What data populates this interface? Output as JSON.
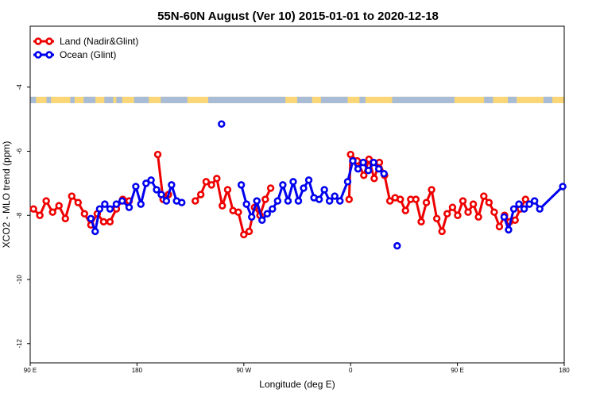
{
  "chart_data": {
    "type": "line",
    "title": "55N-60N August (Ver 10)   2015-01-01 to 2020-12-18",
    "xlabel": "Longitude (deg E)",
    "ylabel": "XCO2 - MLO trend (ppm)",
    "xlim": [
      90,
      450
    ],
    "ylim": [
      -12.6,
      -2.1
    ],
    "x_ticks": [
      {
        "value": 90,
        "label": "90 E"
      },
      {
        "value": 162,
        "label": "180"
      },
      {
        "value": 234,
        "label": "90 W"
      },
      {
        "value": 306,
        "label": "0"
      },
      {
        "value": 378,
        "label": "90 E"
      },
      {
        "value": 450,
        "label": "180"
      }
    ],
    "y_ticks": [
      {
        "value": -4,
        "label": "-4"
      },
      {
        "value": -6,
        "label": "-6"
      },
      {
        "value": -8,
        "label": "-8"
      },
      {
        "value": -10,
        "label": "-10"
      },
      {
        "value": -12,
        "label": "-12"
      }
    ],
    "legend_position": "top-left",
    "land_band": {
      "y_range": [
        -4.5,
        -4.3
      ],
      "land_color": "#fad677",
      "ocean_color": "#a8bcd6"
    },
    "series": [
      {
        "name": "Land (Nadir&Glint)",
        "color": "#ee0000",
        "segments": [
          [
            [
              92.2,
              -7.8
            ],
            [
              96.5,
              -8
            ],
            [
              100.8,
              -7.55
            ],
            [
              105.1,
              -7.9
            ],
            [
              109.4,
              -7.7
            ],
            [
              113.7,
              -8.1
            ],
            [
              118,
              -7.4
            ],
            [
              122.3,
              -7.6
            ],
            [
              126.6,
              -7.95
            ],
            [
              130.9,
              -8.3
            ],
            [
              135.2,
              -7.95
            ],
            [
              139.5,
              -8.2
            ],
            [
              143.8,
              -8.2
            ],
            [
              148.1,
              -7.8
            ],
            [
              152.4,
              -7.5
            ],
            [
              156.7,
              -7.55
            ]
          ],
          [
            [
              176,
              -6.1
            ],
            [
              179.6,
              -7.5
            ],
            [
              183.2,
              -7.35
            ]
          ],
          [
            [
              201.3,
              -7.55
            ],
            [
              205,
              -7.35
            ],
            [
              208.6,
              -6.95
            ],
            [
              212.2,
              -7.05
            ],
            [
              215.8,
              -6.85
            ],
            [
              219.5,
              -7.7
            ],
            [
              223.1,
              -7.2
            ],
            [
              226.7,
              -7.85
            ],
            [
              230.3,
              -7.9
            ],
            [
              234,
              -8.6
            ],
            [
              237.6,
              -8.5
            ],
            [
              241.2,
              -7.75
            ],
            [
              244.9,
              -8
            ],
            [
              248.5,
              -7.5
            ],
            [
              252.1,
              -7.15
            ]
          ],
          [
            [
              305,
              -7.5
            ],
            [
              306,
              -6.1
            ],
            [
              310.5,
              -6.3
            ],
            [
              314.9,
              -6.75
            ],
            [
              318.4,
              -6.25
            ],
            [
              321.9,
              -6.85
            ],
            [
              325.4,
              -6.35
            ],
            [
              328.9,
              -6.75
            ],
            [
              332.5,
              -7.55
            ],
            [
              336,
              -7.45
            ],
            [
              339.5,
              -7.5
            ],
            [
              343,
              -7.85
            ],
            [
              346.5,
              -7.5
            ],
            [
              350,
              -7.5
            ],
            [
              353.6,
              -8.2
            ],
            [
              357.1,
              -7.6
            ],
            [
              360.6,
              -7.2
            ],
            [
              364.1,
              -8.1
            ],
            [
              367.6,
              -8.5
            ],
            [
              371.1,
              -7.95
            ],
            [
              374.7,
              -7.75
            ],
            [
              378.2,
              -8
            ],
            [
              381.7,
              -7.55
            ],
            [
              385.2,
              -7.9
            ],
            [
              388.7,
              -7.65
            ],
            [
              392.2,
              -8.05
            ],
            [
              395.8,
              -7.4
            ],
            [
              399.3,
              -7.6
            ],
            [
              402.8,
              -7.9
            ],
            [
              406.3,
              -8.35
            ],
            [
              409.8,
              -8
            ],
            [
              413.3,
              -8.2
            ],
            [
              416.9,
              -8.15
            ],
            [
              420.4,
              -7.8
            ],
            [
              423.9,
              -7.5
            ]
          ]
        ]
      },
      {
        "name": "Ocean (Glint)",
        "color": "#0000ee",
        "segments": [
          [
            [
              130.9,
              -8.1
            ],
            [
              133.8,
              -8.5
            ],
            [
              136.8,
              -7.8
            ],
            [
              140.3,
              -7.65
            ],
            [
              143.8,
              -7.8
            ],
            [
              148.1,
              -7.65
            ],
            [
              152,
              -7.55
            ],
            [
              156.7,
              -7.75
            ],
            [
              161.2,
              -7.1
            ],
            [
              164.6,
              -7.65
            ],
            [
              168.1,
              -7
            ],
            [
              171.5,
              -6.9
            ],
            [
              175.2,
              -7.2
            ],
            [
              178.4,
              -7.35
            ],
            [
              181.8,
              -7.55
            ],
            [
              185.3,
              -7.05
            ],
            [
              188.7,
              -7.55
            ],
            [
              192.2,
              -7.6
            ]
          ],
          [
            [
              219,
              -5.15
            ]
          ],
          [
            [
              232.3,
              -7.05
            ],
            [
              235.8,
              -7.65
            ],
            [
              239.3,
              -8.05
            ],
            [
              242.8,
              -7.55
            ],
            [
              246.3,
              -8.15
            ],
            [
              249.8,
              -7.95
            ],
            [
              253.3,
              -7.8
            ],
            [
              256.8,
              -7.55
            ],
            [
              260.3,
              -7.05
            ],
            [
              263.8,
              -7.55
            ],
            [
              267.3,
              -6.95
            ],
            [
              270.8,
              -7.55
            ],
            [
              274.3,
              -7.15
            ],
            [
              277.8,
              -6.9
            ],
            [
              281.3,
              -7.45
            ],
            [
              284.8,
              -7.5
            ],
            [
              288.3,
              -7.2
            ],
            [
              291.8,
              -7.55
            ],
            [
              295.3,
              -7.4
            ],
            [
              298.8,
              -7.55
            ],
            [
              304,
              -6.95
            ],
            [
              307.5,
              -6.3
            ],
            [
              311,
              -6.55
            ],
            [
              314.5,
              -6.35
            ],
            [
              318,
              -6.6
            ],
            [
              321.5,
              -6.35
            ],
            [
              325,
              -6.55
            ],
            [
              328.5,
              -6.7
            ]
          ],
          [
            [
              337.4,
              -8.95
            ]
          ],
          [
            [
              409.5,
              -8.05
            ],
            [
              412.5,
              -8.45
            ],
            [
              416,
              -7.8
            ],
            [
              419.5,
              -7.65
            ],
            [
              423,
              -7.8
            ],
            [
              426.5,
              -7.65
            ],
            [
              430,
              -7.55
            ],
            [
              433.5,
              -7.8
            ],
            [
              449,
              -7.1
            ]
          ]
        ]
      }
    ]
  }
}
